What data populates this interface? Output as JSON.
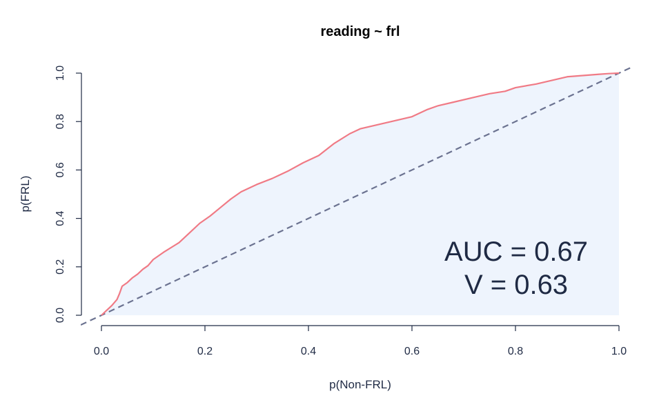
{
  "chart_data": {
    "type": "line",
    "title": "reading ~ frl",
    "xlabel": "p(Non-FRL)",
    "ylabel": "p(FRL)",
    "xlim": [
      0,
      1
    ],
    "ylim": [
      0,
      1
    ],
    "x_ticks": [
      "0.0",
      "0.2",
      "0.4",
      "0.6",
      "0.8",
      "1.0"
    ],
    "y_ticks": [
      "0.0",
      "0.2",
      "0.4",
      "0.6",
      "0.8",
      "1.0"
    ],
    "grid": false,
    "series": [
      {
        "color": "#f07a85",
        "fill": "#eef4fd",
        "x": [
          0,
          0.01,
          0.02,
          0.03,
          0.035,
          0.04,
          0.05,
          0.06,
          0.07,
          0.08,
          0.09,
          0.1,
          0.12,
          0.15,
          0.17,
          0.19,
          0.21,
          0.23,
          0.25,
          0.27,
          0.3,
          0.33,
          0.36,
          0.39,
          0.42,
          0.45,
          0.48,
          0.5,
          0.53,
          0.56,
          0.6,
          0.63,
          0.65,
          0.68,
          0.72,
          0.75,
          0.78,
          0.8,
          0.84,
          0.87,
          0.9,
          0.93,
          0.96,
          0.98,
          1.0
        ],
        "y": [
          0,
          0.02,
          0.04,
          0.065,
          0.09,
          0.12,
          0.135,
          0.155,
          0.17,
          0.19,
          0.205,
          0.23,
          0.26,
          0.3,
          0.34,
          0.38,
          0.41,
          0.445,
          0.48,
          0.51,
          0.54,
          0.565,
          0.595,
          0.63,
          0.66,
          0.71,
          0.75,
          0.77,
          0.785,
          0.8,
          0.82,
          0.85,
          0.865,
          0.88,
          0.9,
          0.915,
          0.925,
          0.94,
          0.955,
          0.97,
          0.985,
          0.99,
          0.995,
          0.998,
          1.0
        ]
      },
      {
        "type": "reference",
        "color": "#6b7290",
        "dash": "dashed",
        "x": [
          0,
          1
        ],
        "y": [
          0,
          1
        ]
      }
    ],
    "annotations": [
      "AUC = 0.67",
      "V = 0.63"
    ]
  }
}
